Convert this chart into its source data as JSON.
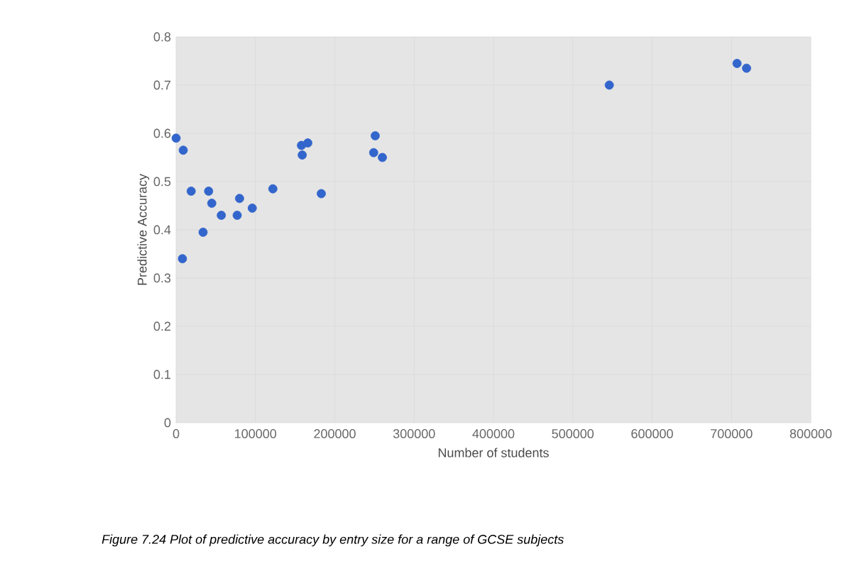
{
  "chart_data": {
    "type": "scatter",
    "xlabel": "Number of students",
    "ylabel": "Predictive Accuracy",
    "annotations": [
      "Figure 7.24 Plot of predictive accuracy by entry size for a range of GCSE subjects"
    ],
    "x": [
      0,
      9000,
      8000,
      19000,
      34000,
      41000,
      45000,
      57000,
      77000,
      80000,
      96000,
      122000,
      159000,
      158000,
      166000,
      183000,
      251000,
      249000,
      260000,
      546000,
      707000,
      719000
    ],
    "values": [
      0.59,
      0.565,
      0.34,
      0.48,
      0.395,
      0.48,
      0.455,
      0.43,
      0.43,
      0.465,
      0.445,
      0.485,
      0.555,
      0.575,
      0.58,
      0.475,
      0.595,
      0.56,
      0.55,
      0.7,
      0.745,
      0.735
    ],
    "color": "#3366cc",
    "marker": "circle",
    "grid": true,
    "xlim": [
      0,
      800000
    ],
    "xticks": [
      0,
      100000,
      200000,
      300000,
      400000,
      500000,
      600000,
      700000,
      800000
    ],
    "ylim": [
      0,
      0.8
    ],
    "yticks": [
      0,
      0.1,
      0.2,
      0.3,
      0.4,
      0.5,
      0.6,
      0.7,
      0.8
    ]
  }
}
